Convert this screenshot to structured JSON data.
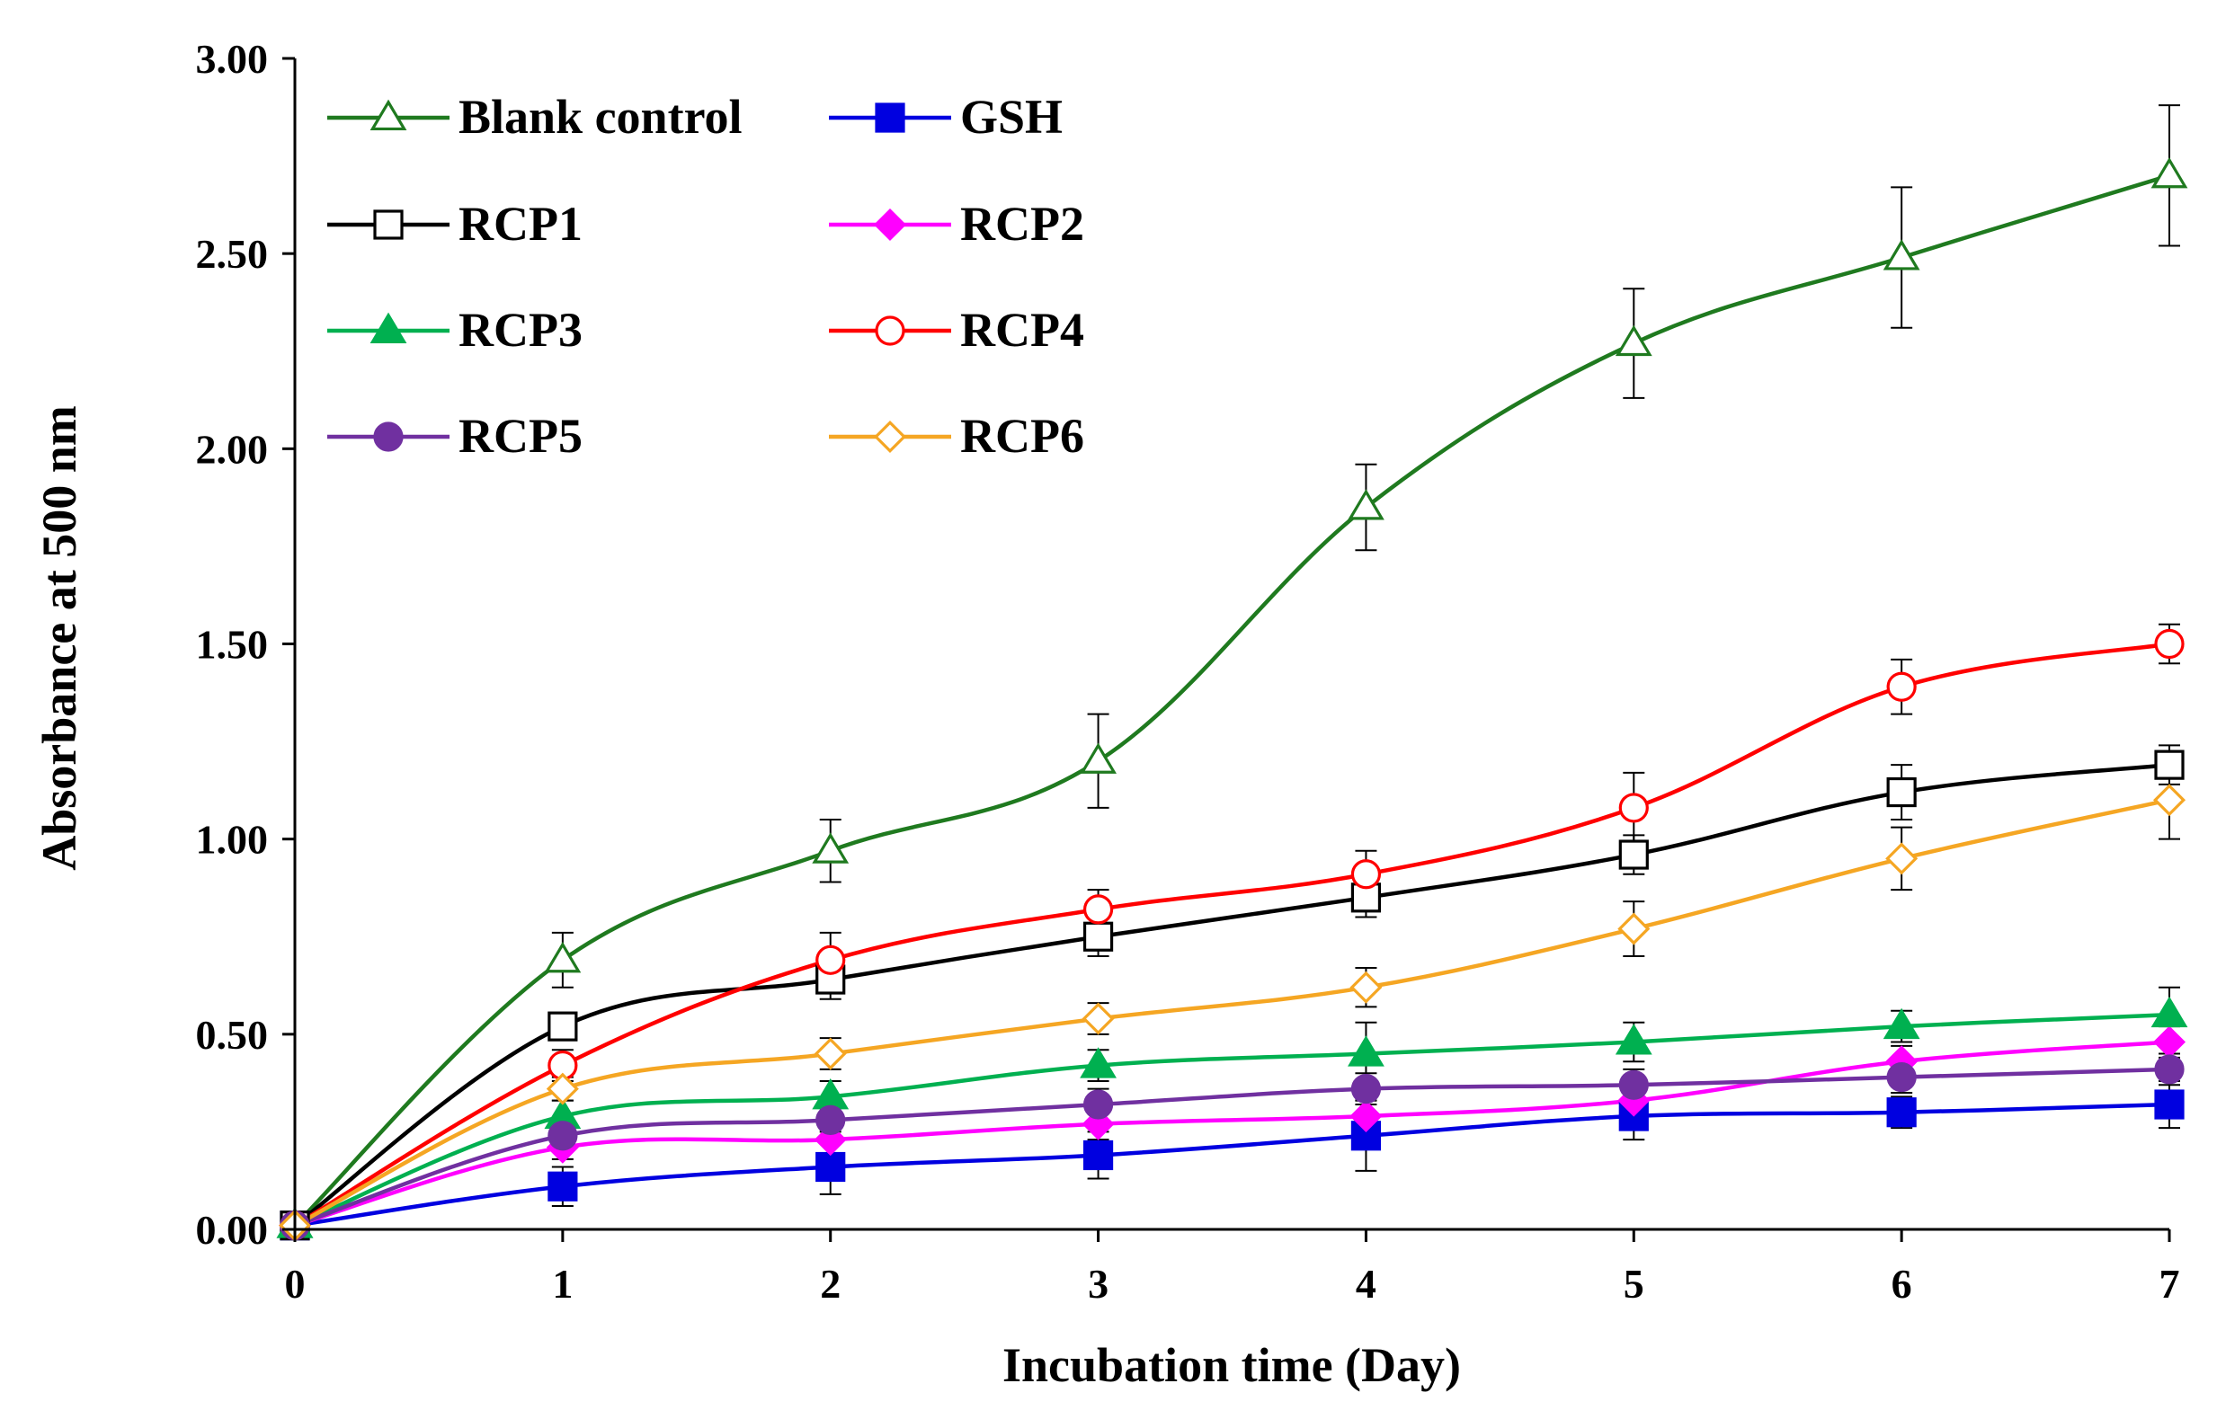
{
  "chart_data": {
    "type": "line",
    "title": "",
    "xlabel": "Incubation time (Day)",
    "ylabel": "Absorbance at 500 nm",
    "x": [
      0,
      1,
      2,
      3,
      4,
      5,
      6,
      7
    ],
    "x_tick_labels": [
      "0",
      "1",
      "2",
      "3",
      "4",
      "5",
      "6",
      "7"
    ],
    "xlim": [
      0,
      7
    ],
    "ylim": [
      0,
      3
    ],
    "y_ticks": [
      0,
      0.5,
      1,
      1.5,
      2,
      2.5,
      3
    ],
    "y_tick_labels": [
      "0.00",
      "0.50",
      "1.00",
      "1.50",
      "2.00",
      "2.50",
      "3.00"
    ],
    "grid": false,
    "legend_position": "top-left",
    "series": [
      {
        "name": "Blank control",
        "color": "#1f7a1f",
        "marker": "triangle-open",
        "values": [
          0.01,
          0.69,
          0.97,
          1.2,
          1.85,
          2.27,
          2.49,
          2.7
        ],
        "errors": [
          0.0,
          0.07,
          0.08,
          0.12,
          0.11,
          0.14,
          0.18,
          0.18
        ]
      },
      {
        "name": "GSH",
        "color": "#0000e0",
        "marker": "square-filled",
        "values": [
          0.01,
          0.11,
          0.16,
          0.19,
          0.24,
          0.29,
          0.3,
          0.32
        ],
        "errors": [
          0.0,
          0.05,
          0.07,
          0.06,
          0.09,
          0.06,
          0.04,
          0.06
        ]
      },
      {
        "name": "RCP1",
        "color": "#000000",
        "marker": "square-open",
        "values": [
          0.01,
          0.52,
          0.64,
          0.75,
          0.85,
          0.96,
          1.12,
          1.19
        ],
        "errors": [
          0.0,
          0.03,
          0.05,
          0.05,
          0.05,
          0.05,
          0.07,
          0.05
        ]
      },
      {
        "name": "RCP2",
        "color": "#ff00ff",
        "marker": "diamond-filled",
        "values": [
          0.01,
          0.21,
          0.23,
          0.27,
          0.29,
          0.33,
          0.43,
          0.48
        ],
        "errors": [
          0.0,
          0.03,
          0.04,
          0.04,
          0.04,
          0.04,
          0.04,
          0.04
        ]
      },
      {
        "name": "RCP3",
        "color": "#00b050",
        "marker": "triangle-filled",
        "values": [
          0.01,
          0.29,
          0.34,
          0.42,
          0.45,
          0.48,
          0.52,
          0.55
        ],
        "errors": [
          0.0,
          0.04,
          0.04,
          0.04,
          0.08,
          0.05,
          0.04,
          0.07
        ]
      },
      {
        "name": "RCP4",
        "color": "#ff0000",
        "marker": "circle-open",
        "values": [
          0.01,
          0.42,
          0.69,
          0.82,
          0.91,
          1.08,
          1.39,
          1.5
        ],
        "errors": [
          0.0,
          0.04,
          0.07,
          0.05,
          0.06,
          0.09,
          0.07,
          0.05
        ]
      },
      {
        "name": "RCP5",
        "color": "#7030a0",
        "marker": "circle-filled",
        "values": [
          0.01,
          0.24,
          0.28,
          0.32,
          0.36,
          0.37,
          0.39,
          0.41
        ],
        "errors": [
          0.0,
          0.03,
          0.03,
          0.04,
          0.04,
          0.04,
          0.04,
          0.04
        ]
      },
      {
        "name": "RCP6",
        "color": "#f5a623",
        "marker": "diamond-open",
        "values": [
          0.01,
          0.36,
          0.45,
          0.54,
          0.62,
          0.77,
          0.95,
          1.1
        ],
        "errors": [
          0.0,
          0.03,
          0.04,
          0.04,
          0.05,
          0.07,
          0.08,
          0.1
        ]
      }
    ]
  }
}
